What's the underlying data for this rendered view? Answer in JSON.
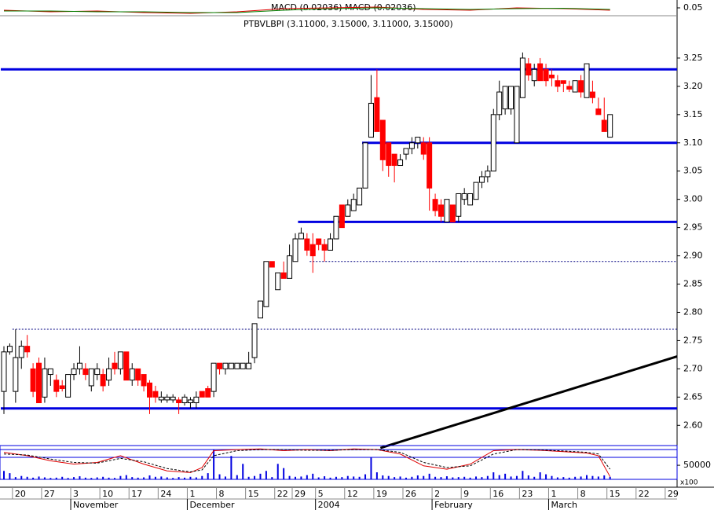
{
  "chart_data": {
    "type": "candlestick",
    "title": "PTBVLBPI (3.11000, 3.15000, 3.11000, 3.15000)",
    "ylim": [
      2.567,
      3.325
    ],
    "yticks": [
      {
        "value": 2.6,
        "label": "2.60"
      },
      2.65,
      {
        "value": 2.7,
        "label": "2.70"
      },
      2.75,
      {
        "value": 2.8,
        "label": "2.80"
      },
      2.85,
      {
        "value": 2.9,
        "label": "2.90"
      },
      2.95,
      {
        "value": 3,
        "label": "3.00"
      },
      3.05,
      {
        "value": 3.1,
        "label": "3.10"
      },
      3.15,
      {
        "value": 3.2,
        "label": "3.20"
      },
      3.25
    ],
    "up_color": "#ffffff",
    "down_color": "#ff0000",
    "outline_color": "#000000",
    "categories": [
      null,
      null,
      "20",
      null,
      null,
      null,
      null,
      "27",
      null,
      null,
      null,
      null,
      "3",
      null,
      null,
      null,
      null,
      "10",
      null,
      null,
      null,
      null,
      "17",
      null,
      null,
      null,
      null,
      "24",
      null,
      null,
      null,
      null,
      "1",
      null,
      null,
      null,
      null,
      "8",
      null,
      null,
      null,
      null,
      "15",
      null,
      null,
      null,
      null,
      "22",
      null,
      null,
      "29",
      null,
      null,
      null,
      "5",
      null,
      null,
      null,
      null,
      "12",
      null,
      null,
      null,
      null,
      "19",
      null,
      null,
      null,
      null,
      "26",
      null,
      null,
      null,
      null,
      "2",
      null,
      null,
      null,
      null,
      "9",
      null,
      null,
      null,
      null,
      "16",
      null,
      null,
      null,
      null,
      "23",
      null,
      null,
      null,
      null,
      "1",
      null,
      null,
      null,
      null,
      "8",
      null,
      null,
      null,
      null,
      "15",
      null,
      null,
      null,
      null,
      "22",
      null,
      null,
      null,
      null,
      "29"
    ],
    "months": [
      null,
      null,
      null,
      null,
      null,
      null,
      null,
      null,
      null,
      null,
      null,
      null,
      "November",
      null,
      null,
      null,
      null,
      null,
      null,
      null,
      null,
      null,
      null,
      null,
      null,
      null,
      null,
      null,
      null,
      null,
      null,
      null,
      "December",
      null,
      null,
      null,
      null,
      null,
      null,
      null,
      null,
      null,
      null,
      null,
      null,
      null,
      null,
      null,
      null,
      null,
      null,
      null,
      null,
      null,
      "2004",
      null,
      null,
      null,
      null,
      null,
      null,
      null,
      null,
      null,
      null,
      null,
      null,
      null,
      null,
      null,
      null,
      null,
      null,
      null,
      "February",
      null,
      null,
      null,
      null,
      null,
      null,
      null,
      null,
      null,
      null,
      null,
      null,
      null,
      null,
      null,
      null,
      null,
      null,
      null,
      "March",
      null,
      null,
      null,
      null,
      null,
      null,
      null,
      null,
      null,
      null,
      null,
      null,
      null,
      null,
      null,
      null,
      null,
      null,
      null,
      null
    ],
    "open": [
      2.66,
      2.73,
      2.66,
      2.72,
      2.74,
      2.7,
      2.71,
      2.65,
      2.69,
      2.68,
      2.67,
      2.65,
      2.69,
      2.7,
      2.7,
      2.67,
      2.69,
      2.69,
      2.68,
      2.71,
      2.7,
      2.73,
      2.68,
      2.7,
      2.69,
      2.675,
      2.66,
      2.645,
      2.645,
      2.645,
      2.645,
      2.64,
      2.64,
      2.64,
      2.66,
      2.665,
      2.66,
      2.71,
      2.7,
      2.7,
      2.7,
      2.7,
      2.7,
      2.72,
      2.79,
      2.81,
      2.89,
      2.84,
      2.87,
      2.86,
      2.89,
      2.93,
      2.93,
      2.92,
      2.93,
      2.92,
      2.91,
      2.93,
      2.99,
      2.97,
      2.98,
      2.99,
      3.02,
      3.11,
      3.18,
      3.14,
      3.1,
      3.08,
      3.06,
      3.08,
      3.09,
      3.1,
      3.1,
      3.1,
      3.0,
      2.99,
      2.96,
      2.99,
      2.97,
      3.0,
      2.99,
      3.0,
      3.03,
      3.04,
      3.05,
      3.15,
      3.16,
      3.16,
      3.1,
      3.18,
      3.24,
      3.21,
      3.24,
      3.23,
      3.22,
      3.21,
      3.21,
      3.2,
      3.19,
      3.21,
      3.18,
      3.19,
      3.16,
      3.14,
      3.11,
      null,
      null,
      null,
      null,
      null,
      null,
      null,
      null,
      null,
      null
    ],
    "high": [
      2.74,
      2.745,
      2.77,
      2.75,
      2.76,
      2.71,
      2.72,
      2.72,
      2.7,
      2.69,
      2.68,
      2.69,
      2.71,
      2.74,
      2.71,
      2.7,
      2.71,
      2.7,
      2.72,
      2.73,
      2.73,
      2.73,
      2.71,
      2.7,
      2.69,
      2.68,
      2.67,
      2.66,
      2.655,
      2.655,
      2.65,
      2.655,
      2.65,
      2.66,
      2.66,
      2.67,
      2.71,
      2.71,
      2.71,
      2.71,
      2.71,
      2.71,
      2.73,
      2.78,
      2.82,
      2.89,
      2.89,
      2.87,
      2.89,
      2.92,
      2.94,
      2.95,
      2.94,
      2.94,
      2.93,
      2.93,
      2.94,
      2.97,
      2.99,
      3.0,
      3.01,
      3.02,
      3.1,
      3.22,
      3.23,
      3.14,
      3.1,
      3.08,
      3.08,
      3.09,
      3.11,
      3.11,
      3.11,
      3.11,
      3.01,
      3.0,
      3.0,
      2.99,
      3.01,
      3.02,
      3.01,
      3.03,
      3.05,
      3.06,
      3.16,
      3.21,
      3.2,
      3.2,
      3.2,
      3.26,
      3.25,
      3.24,
      3.25,
      3.24,
      3.23,
      3.22,
      3.21,
      3.21,
      3.21,
      3.22,
      3.24,
      3.21,
      3.18,
      3.18,
      3.15,
      null,
      null,
      null,
      null,
      null,
      null,
      null,
      null,
      null,
      null
    ],
    "low": [
      2.62,
      2.725,
      2.64,
      2.7,
      2.72,
      2.65,
      2.64,
      2.64,
      2.67,
      2.65,
      2.66,
      2.65,
      2.68,
      2.69,
      2.68,
      2.66,
      2.68,
      2.66,
      2.67,
      2.69,
      2.69,
      2.68,
      2.67,
      2.67,
      2.66,
      2.62,
      2.64,
      2.64,
      2.64,
      2.64,
      2.62,
      2.635,
      2.63,
      2.63,
      2.65,
      2.65,
      2.65,
      2.69,
      2.69,
      2.7,
      2.7,
      2.7,
      2.7,
      2.71,
      2.79,
      2.81,
      2.88,
      2.84,
      2.86,
      2.86,
      2.89,
      2.93,
      2.9,
      2.87,
      2.91,
      2.89,
      2.91,
      2.93,
      2.95,
      2.97,
      2.98,
      2.99,
      3.02,
      3.11,
      3.12,
      3.05,
      3.04,
      3.03,
      3.06,
      3.07,
      3.08,
      3.09,
      3.07,
      2.98,
      2.97,
      2.96,
      2.96,
      2.96,
      2.96,
      2.99,
      2.99,
      3.0,
      3.02,
      3.03,
      3.05,
      3.14,
      3.15,
      3.15,
      3.1,
      3.18,
      3.21,
      3.2,
      3.21,
      3.2,
      3.2,
      3.19,
      3.19,
      3.19,
      3.19,
      3.18,
      3.18,
      3.17,
      3.15,
      3.12,
      3.11,
      null,
      null,
      null,
      null,
      null,
      null,
      null,
      null,
      null,
      null
    ],
    "close": [
      2.73,
      2.74,
      2.72,
      2.74,
      2.73,
      2.66,
      2.64,
      2.7,
      2.7,
      2.66,
      2.665,
      2.69,
      2.7,
      2.71,
      2.69,
      2.7,
      2.7,
      2.67,
      2.7,
      2.7,
      2.73,
      2.68,
      2.7,
      2.68,
      2.67,
      2.65,
      2.65,
      2.65,
      2.65,
      2.65,
      2.64,
      2.65,
      2.645,
      2.65,
      2.65,
      2.65,
      2.71,
      2.7,
      2.71,
      2.71,
      2.71,
      2.71,
      2.71,
      2.78,
      2.82,
      2.89,
      2.88,
      2.87,
      2.86,
      2.9,
      2.93,
      2.94,
      2.91,
      2.9,
      2.92,
      2.91,
      2.93,
      2.97,
      2.95,
      2.99,
      3.0,
      3.02,
      3.1,
      3.17,
      3.12,
      3.07,
      3.06,
      3.06,
      3.07,
      3.09,
      3.1,
      3.11,
      3.08,
      3.02,
      2.98,
      2.97,
      3.0,
      2.96,
      3.01,
      3.01,
      3.01,
      3.03,
      3.04,
      3.05,
      3.15,
      3.19,
      3.2,
      3.2,
      3.2,
      3.25,
      3.22,
      3.23,
      3.21,
      3.21,
      3.215,
      3.2,
      3.205,
      3.195,
      3.21,
      3.19,
      3.24,
      3.18,
      3.15,
      3.12,
      3.15,
      null,
      null,
      null,
      null,
      null,
      null,
      null,
      null,
      null,
      null
    ],
    "levels": [
      {
        "value": 3.23,
        "from": 0,
        "color": "#0000e0",
        "style": "solid"
      },
      {
        "value": 3.1,
        "from": 62,
        "color": "#0000e0",
        "style": "solid"
      },
      {
        "value": 2.96,
        "from": 51,
        "color": "#0000e0",
        "style": "solid"
      },
      {
        "value": 2.63,
        "from": 0,
        "color": "#0000e0",
        "style": "solid"
      },
      {
        "value": 2.89,
        "from": 53,
        "color": "#000080",
        "style": "dotted"
      },
      {
        "value": 2.77,
        "from": 2,
        "color": "#000080",
        "style": "dotted"
      }
    ],
    "trendline": {
      "x": [
        64.6,
        115.5
      ],
      "y": [
        2.56,
        2.722
      ],
      "color": "#000000"
    },
    "macd": {
      "label": "MACD (0.02036) MACD (0.02036)",
      "ylim": [
        -0.05,
        0.15
      ],
      "yticks": [
        0.05
      ],
      "x": [
        0,
        8,
        16,
        24,
        32,
        40,
        48,
        56,
        64,
        72,
        80,
        88,
        96,
        104
      ],
      "series": [
        {
          "color": "#e00000",
          "values": [
            0.02,
            0.0,
            0.01,
            -0.01,
            -0.02,
            0.0,
            0.04,
            0.05,
            0.06,
            0.03,
            0.02,
            0.05,
            0.04,
            0.02
          ]
        },
        {
          "color": "#008000",
          "values": [
            0.01,
            0.01,
            0.0,
            0.0,
            -0.01,
            -0.01,
            0.02,
            0.04,
            0.05,
            0.04,
            0.03,
            0.04,
            0.045,
            0.03
          ]
        }
      ]
    },
    "volume": {
      "color": "#0000e0",
      "ylim": [
        0,
        120000
      ],
      "yticks": [
        50000
      ],
      "unit_label": "x100",
      "values": [
        30000,
        22000,
        8000,
        12000,
        9000,
        6000,
        10000,
        7000,
        5000,
        6000,
        9000,
        5000,
        8000,
        11000,
        6000,
        5000,
        7000,
        9000,
        6000,
        5000,
        12000,
        15000,
        8000,
        6000,
        7000,
        14000,
        9000,
        10000,
        7000,
        5000,
        8000,
        6000,
        9000,
        7000,
        12000,
        22000,
        105000,
        18000,
        10000,
        83000,
        15000,
        55000,
        9000,
        12000,
        20000,
        30000,
        8000,
        55000,
        40000,
        12000,
        9000,
        10000,
        15000,
        20000,
        7000,
        11000,
        6000,
        9000,
        8000,
        12000,
        10000,
        9000,
        18000,
        78000,
        25000,
        14000,
        12000,
        8000,
        10000,
        6000,
        9000,
        14000,
        12000,
        20000,
        9000,
        8000,
        11000,
        7000,
        8000,
        9000,
        6000,
        10000,
        8000,
        12000,
        25000,
        15000,
        20000,
        10000,
        12000,
        30000,
        14000,
        9000,
        25000,
        18000,
        12000,
        7000,
        8000,
        6000,
        9000,
        10000,
        15000,
        12000,
        10000,
        14000,
        9000,
        null,
        null,
        null,
        null,
        null,
        null,
        null,
        null,
        null,
        null
      ]
    },
    "oscillator": {
      "ylim": [
        0,
        100
      ],
      "levels": [
        88,
        65
      ],
      "level_color": "#0000e0",
      "x": [
        0,
        4,
        8,
        12,
        16,
        20,
        24,
        28,
        32,
        34,
        36,
        40,
        44,
        48,
        52,
        56,
        60,
        64,
        68,
        72,
        76,
        80,
        84,
        88,
        92,
        96,
        100,
        102,
        104
      ],
      "series": [
        {
          "color": "#e00000",
          "style": "solid",
          "values": [
            80,
            70,
            55,
            45,
            50,
            70,
            45,
            25,
            20,
            35,
            85,
            88,
            90,
            85,
            88,
            85,
            90,
            88,
            75,
            40,
            30,
            45,
            85,
            88,
            86,
            82,
            78,
            70,
            8
          ]
        },
        {
          "color": "#000000",
          "style": "dashed",
          "values": [
            75,
            72,
            60,
            50,
            48,
            62,
            52,
            32,
            22,
            28,
            70,
            85,
            88,
            88,
            86,
            86,
            88,
            88,
            80,
            50,
            35,
            40,
            75,
            88,
            87,
            84,
            80,
            75,
            30
          ]
        }
      ]
    }
  }
}
